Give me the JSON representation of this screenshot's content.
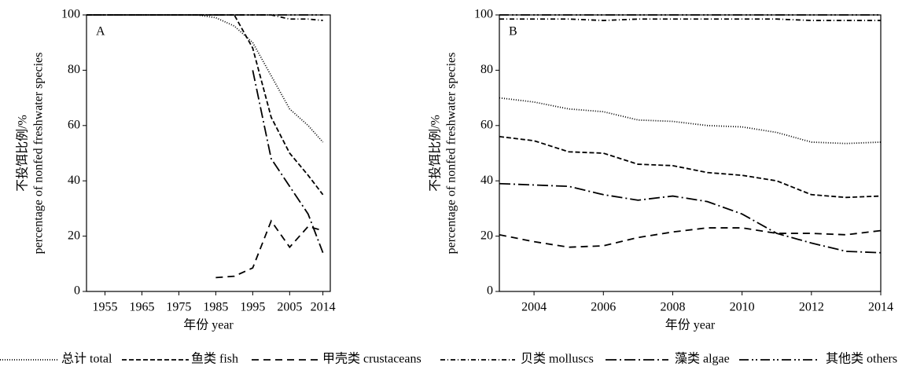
{
  "chart_data": [
    {
      "type": "line",
      "label": "A",
      "xlabel": "年份 year",
      "ylabel": [
        "不投饵比例/%",
        "percentage of nonfed freshwater species"
      ],
      "x": [
        1950,
        1955,
        1960,
        1965,
        1970,
        1975,
        1980,
        1985,
        1990,
        1995,
        2000,
        2005,
        2010,
        2014
      ],
      "xlim": [
        1950,
        2016
      ],
      "xticks": [
        1955,
        1965,
        1975,
        1985,
        1995,
        2005,
        2014
      ],
      "ylim": [
        0,
        100
      ],
      "yticks": [
        0,
        20,
        40,
        60,
        80,
        100
      ],
      "series": [
        {
          "name": "总计 total",
          "color": "#000000",
          "dash": "1,2",
          "values": [
            100,
            100,
            100,
            100,
            100,
            100,
            100,
            99,
            96,
            90,
            78,
            66,
            60,
            54
          ]
        },
        {
          "name": "鱼类 fish",
          "color": "#000000",
          "dash": "6,3",
          "values": [
            100,
            100,
            100,
            100,
            100,
            100,
            100,
            100,
            100,
            88,
            63,
            50,
            42,
            35
          ]
        },
        {
          "name": "甲壳类 crustaceans",
          "color": "#000000",
          "dash": "9,6",
          "values": [
            null,
            null,
            null,
            null,
            null,
            null,
            null,
            5,
            5.5,
            8.5,
            25.5,
            16,
            23.5,
            22
          ]
        },
        {
          "name": "贝类 molluscs",
          "color": "#000000",
          "dash": "6,3,1,3",
          "values": [
            100,
            100,
            100,
            100,
            100,
            100,
            100,
            100,
            100,
            100,
            100,
            98.5,
            98.5,
            98
          ]
        },
        {
          "name": "藻类 algae",
          "color": "#000000",
          "dash": "14,4,2,4",
          "values": [
            null,
            null,
            null,
            null,
            null,
            null,
            null,
            null,
            null,
            80,
            48,
            38,
            28,
            14
          ]
        },
        {
          "name": "其他类 others",
          "color": "#000000",
          "dash": "12,4,2,3,2,4",
          "values": [
            100,
            100,
            100,
            100,
            100,
            100,
            100,
            100,
            100,
            100,
            100,
            100,
            100,
            100
          ]
        }
      ]
    },
    {
      "type": "line",
      "label": "B",
      "xlabel": "年份 year",
      "ylabel": [
        "不投饵比例/%",
        "percentage of nonfed freshwater species"
      ],
      "x": [
        2003,
        2004,
        2005,
        2006,
        2007,
        2008,
        2009,
        2010,
        2011,
        2012,
        2013,
        2014
      ],
      "xlim": [
        2003,
        2014
      ],
      "xticks": [
        2004,
        2006,
        2008,
        2010,
        2012,
        2014
      ],
      "ylim": [
        0,
        100
      ],
      "yticks": [
        0,
        20,
        40,
        60,
        80,
        100
      ],
      "series": [
        {
          "color": "#000000",
          "dash": "1,2",
          "values": [
            70,
            68.5,
            66,
            65,
            62,
            61.5,
            60,
            59.5,
            57.5,
            54,
            53.5,
            54
          ]
        },
        {
          "color": "#000000",
          "dash": "6,3",
          "values": [
            56,
            54.5,
            50.5,
            50,
            46,
            45.5,
            43,
            42,
            40,
            35,
            34,
            34.5
          ]
        },
        {
          "color": "#000000",
          "dash": "9,6",
          "values": [
            20.5,
            18,
            16,
            16.5,
            19.5,
            21.5,
            23,
            23,
            21,
            21,
            20.5,
            22
          ]
        },
        {
          "color": "#000000",
          "dash": "6,3,1,3",
          "values": [
            98.5,
            98.5,
            98.5,
            98,
            98.5,
            98.5,
            98.5,
            98.5,
            98.5,
            98,
            98,
            98
          ]
        },
        {
          "color": "#000000",
          "dash": "14,4,2,4",
          "values": [
            39,
            38.5,
            38,
            35,
            33,
            34.5,
            32.5,
            28,
            21,
            17.5,
            14.5,
            14
          ]
        },
        {
          "color": "#000000",
          "dash": "12,4,2,3,2,4",
          "values": [
            100,
            100,
            100,
            100,
            100,
            100,
            100,
            100,
            100,
            100,
            100,
            100
          ]
        }
      ]
    }
  ]
}
